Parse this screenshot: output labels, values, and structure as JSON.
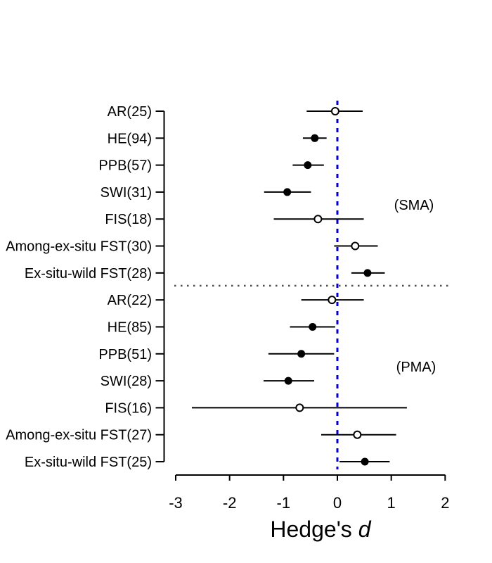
{
  "figure": {
    "background_color": "#ffffff"
  },
  "chart_data": {
    "type": "scatter",
    "subtype": "forest-plot",
    "title": "",
    "xlabel": "Hedge's d",
    "xlabel_prefix": "Hedge's",
    "xlabel_italic": "d",
    "ylabel": "",
    "xlim": [
      -3.1,
      2.1
    ],
    "x_ticks": [
      -3,
      -2,
      -1,
      0,
      1,
      2
    ],
    "grid": "off",
    "reference_line": {
      "x": 0,
      "style": "dashed",
      "color": "#0000cc"
    },
    "divider_line": {
      "style": "dotted",
      "color": "#4d4d4d",
      "position": "between groups"
    },
    "axis_color": "#000000",
    "groups": [
      {
        "label": "(SMA)",
        "rows": [
          {
            "label": "AR(25)",
            "estimate": -0.04,
            "ci_low": -0.57,
            "ci_high": 0.47,
            "marker": "open"
          },
          {
            "label": "HE(94)",
            "estimate": -0.42,
            "ci_low": -0.64,
            "ci_high": -0.2,
            "marker": "filled"
          },
          {
            "label": "PPB(57)",
            "estimate": -0.55,
            "ci_low": -0.83,
            "ci_high": -0.25,
            "marker": "filled"
          },
          {
            "label": "SWI(31)",
            "estimate": -0.93,
            "ci_low": -1.36,
            "ci_high": -0.49,
            "marker": "filled"
          },
          {
            "label": "FIS(18)",
            "estimate": -0.36,
            "ci_low": -1.18,
            "ci_high": 0.49,
            "marker": "open"
          },
          {
            "label": "Among-ex-situ FST(30)",
            "estimate": 0.33,
            "ci_low": -0.06,
            "ci_high": 0.75,
            "marker": "open"
          },
          {
            "label": "Ex-situ-wild FST(28)",
            "estimate": 0.56,
            "ci_low": 0.26,
            "ci_high": 0.88,
            "marker": "filled"
          }
        ]
      },
      {
        "label": "(PMA)",
        "rows": [
          {
            "label": "AR(22)",
            "estimate": -0.1,
            "ci_low": -0.67,
            "ci_high": 0.49,
            "marker": "open"
          },
          {
            "label": "HE(85)",
            "estimate": -0.46,
            "ci_low": -0.88,
            "ci_high": -0.04,
            "marker": "filled"
          },
          {
            "label": "PPB(51)",
            "estimate": -0.67,
            "ci_low": -1.28,
            "ci_high": -0.06,
            "marker": "filled"
          },
          {
            "label": "SWI(28)",
            "estimate": -0.91,
            "ci_low": -1.37,
            "ci_high": -0.43,
            "marker": "filled"
          },
          {
            "label": "FIS(16)",
            "estimate": -0.7,
            "ci_low": -2.7,
            "ci_high": 1.29,
            "marker": "open"
          },
          {
            "label": "Among-ex-situ FST(27)",
            "estimate": 0.37,
            "ci_low": -0.3,
            "ci_high": 1.09,
            "marker": "open"
          },
          {
            "label": "Ex-situ-wild FST(25)",
            "estimate": 0.51,
            "ci_low": 0.04,
            "ci_high": 0.97,
            "marker": "filled"
          }
        ]
      }
    ]
  }
}
